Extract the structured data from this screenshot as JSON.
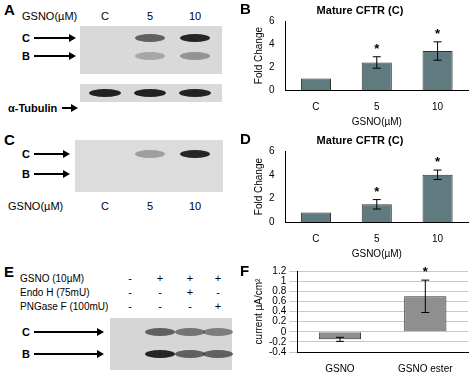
{
  "blots": [
    {
      "panel": "A",
      "condition_label": "GSNO(µM)",
      "lanes": [
        "C",
        "5",
        "10"
      ],
      "bands": [
        "C",
        "B"
      ],
      "intensity": [
        [
          0,
          0.6,
          0.9
        ],
        [
          0,
          0.25,
          0.35
        ]
      ],
      "loading_control": "α-Tubulin"
    },
    {
      "panel": "C",
      "condition_label": "GSNO(µM)",
      "lanes": [
        "C",
        "5",
        "10"
      ],
      "bands": [
        "C",
        "B"
      ],
      "intensity": [
        [
          0,
          0.3,
          0.9
        ],
        [
          0,
          0,
          0
        ]
      ]
    },
    {
      "panel": "E",
      "conditions": [
        {
          "label": "GSNO (10µM)",
          "lanes": [
            "-",
            "+",
            "+",
            "+"
          ]
        },
        {
          "label": "Endo H (75mU)",
          "lanes": [
            "-",
            "-",
            "+",
            "-"
          ]
        },
        {
          "label": "PNGase F (100mU)",
          "lanes": [
            "-",
            "-",
            "-",
            "+"
          ]
        }
      ],
      "bands": [
        "C",
        "B"
      ],
      "intensity": [
        [
          0,
          0.6,
          0.5,
          0.45
        ],
        [
          0,
          0.9,
          0.6,
          0.6
        ]
      ]
    }
  ],
  "chart_data": [
    {
      "panel": "B",
      "type": "bar",
      "title": "Mature CFTR (C)",
      "y_label": "Fold Change",
      "x_label": "GSNO(µM)",
      "categories": [
        "C",
        "5",
        "10"
      ],
      "values": [
        1,
        2.4,
        3.4
      ],
      "errors": [
        0,
        0.5,
        0.8
      ],
      "significance": [
        null,
        "*",
        "*"
      ],
      "color": "#5f7b7f",
      "ylim": [
        0,
        6
      ],
      "yticks": [
        0,
        2,
        4,
        6
      ],
      "grid": false
    },
    {
      "panel": "D",
      "type": "bar",
      "title": "Mature CFTR (C)",
      "y_label": "Fold Change",
      "x_label": "GSNO(µM)",
      "categories": [
        "C",
        "5",
        "10"
      ],
      "values": [
        0.8,
        1.5,
        4.0
      ],
      "errors": [
        0,
        0.4,
        0.4
      ],
      "significance": [
        null,
        "*",
        "*"
      ],
      "color": "#5f7b7f",
      "ylim": [
        0,
        6
      ],
      "yticks": [
        0,
        2,
        4,
        6
      ],
      "grid": false
    },
    {
      "panel": "F",
      "type": "bar",
      "y_label": "current µA/cm²",
      "categories": [
        "GSNO",
        "GSNO ester"
      ],
      "values": [
        -0.15,
        0.7
      ],
      "errors": [
        0.04,
        0.32
      ],
      "significance": [
        null,
        "*"
      ],
      "color": "#8f8f8f",
      "ylim": [
        -0.4,
        1.2
      ],
      "yticks": [
        -0.4,
        -0.2,
        0,
        0.2,
        0.4,
        0.6,
        0.8,
        1,
        1.2
      ],
      "grid": true
    }
  ]
}
